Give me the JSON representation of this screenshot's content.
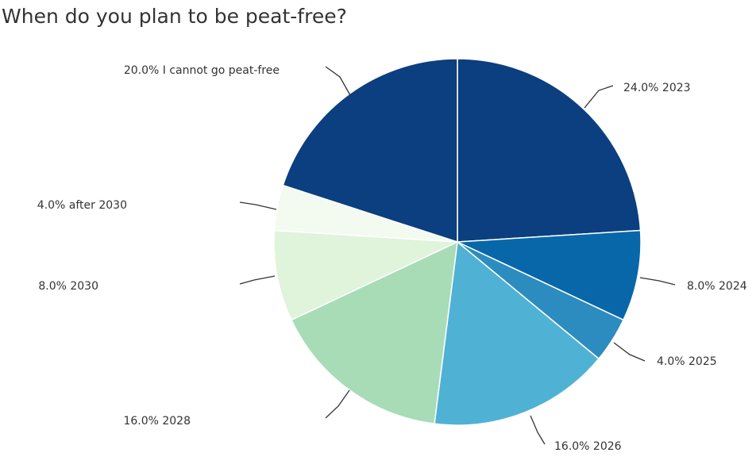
{
  "chart_data": {
    "type": "pie",
    "title": "When do you plan to be peat-free?",
    "slices": [
      {
        "label": "2023",
        "value": 24.0,
        "display": "24.0% 2023",
        "color": "#0b3f7f"
      },
      {
        "label": "2024",
        "value": 8.0,
        "display": "8.0% 2024",
        "color": "#0767a9"
      },
      {
        "label": "2025",
        "value": 4.0,
        "display": "4.0% 2025",
        "color": "#2c8cbf"
      },
      {
        "label": "2026",
        "value": 16.0,
        "display": "16.0% 2026",
        "color": "#4fb2d4"
      },
      {
        "label": "2028",
        "value": 16.0,
        "display": "16.0% 2028",
        "color": "#a8dcb6"
      },
      {
        "label": "2030",
        "value": 8.0,
        "display": "8.0% 2030",
        "color": "#e0f3db"
      },
      {
        "label": "after 2030",
        "value": 4.0,
        "display": "4.0% after 2030",
        "color": "#f3faef"
      },
      {
        "label": "I cannot go peat-free",
        "value": 20.0,
        "display": "20.0% I cannot go peat-free",
        "color": "#0b3f7f"
      }
    ],
    "legend": "none"
  }
}
